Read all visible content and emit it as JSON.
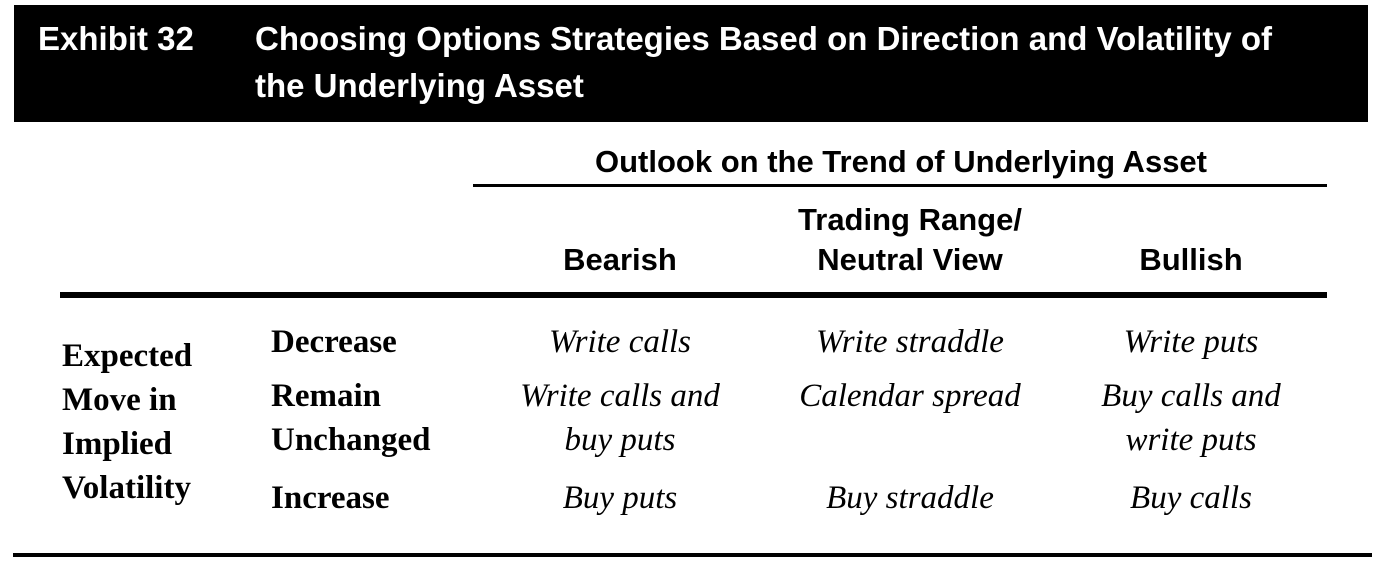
{
  "exhibit": {
    "label": "Exhibit 32",
    "title": "Choosing Options Strategies Based on Direction and Volatility of the Underlying Asset"
  },
  "table": {
    "column_group_header": "Outlook on the Trend of Underlying Asset",
    "column_headers": [
      "Bearish",
      "Trading Range/\nNeutral View",
      "Bullish"
    ],
    "row_group_header": "Expected\nMove in\nImplied\nVolatility",
    "rows": [
      {
        "label": "Decrease",
        "cells": [
          "Write calls",
          "Write straddle",
          "Write puts"
        ]
      },
      {
        "label": "Remain\nUnchanged",
        "cells": [
          "Write calls and\nbuy puts",
          "Calendar spread",
          "Buy calls and\nwrite puts"
        ]
      },
      {
        "label": "Increase",
        "cells": [
          "Buy puts",
          "Buy straddle",
          "Buy calls"
        ]
      }
    ]
  },
  "colors": {
    "header_bar_bg": "#000000",
    "header_bar_text": "#ffffff",
    "body_text": "#000000",
    "rule": "#000000",
    "background": "#ffffff"
  }
}
